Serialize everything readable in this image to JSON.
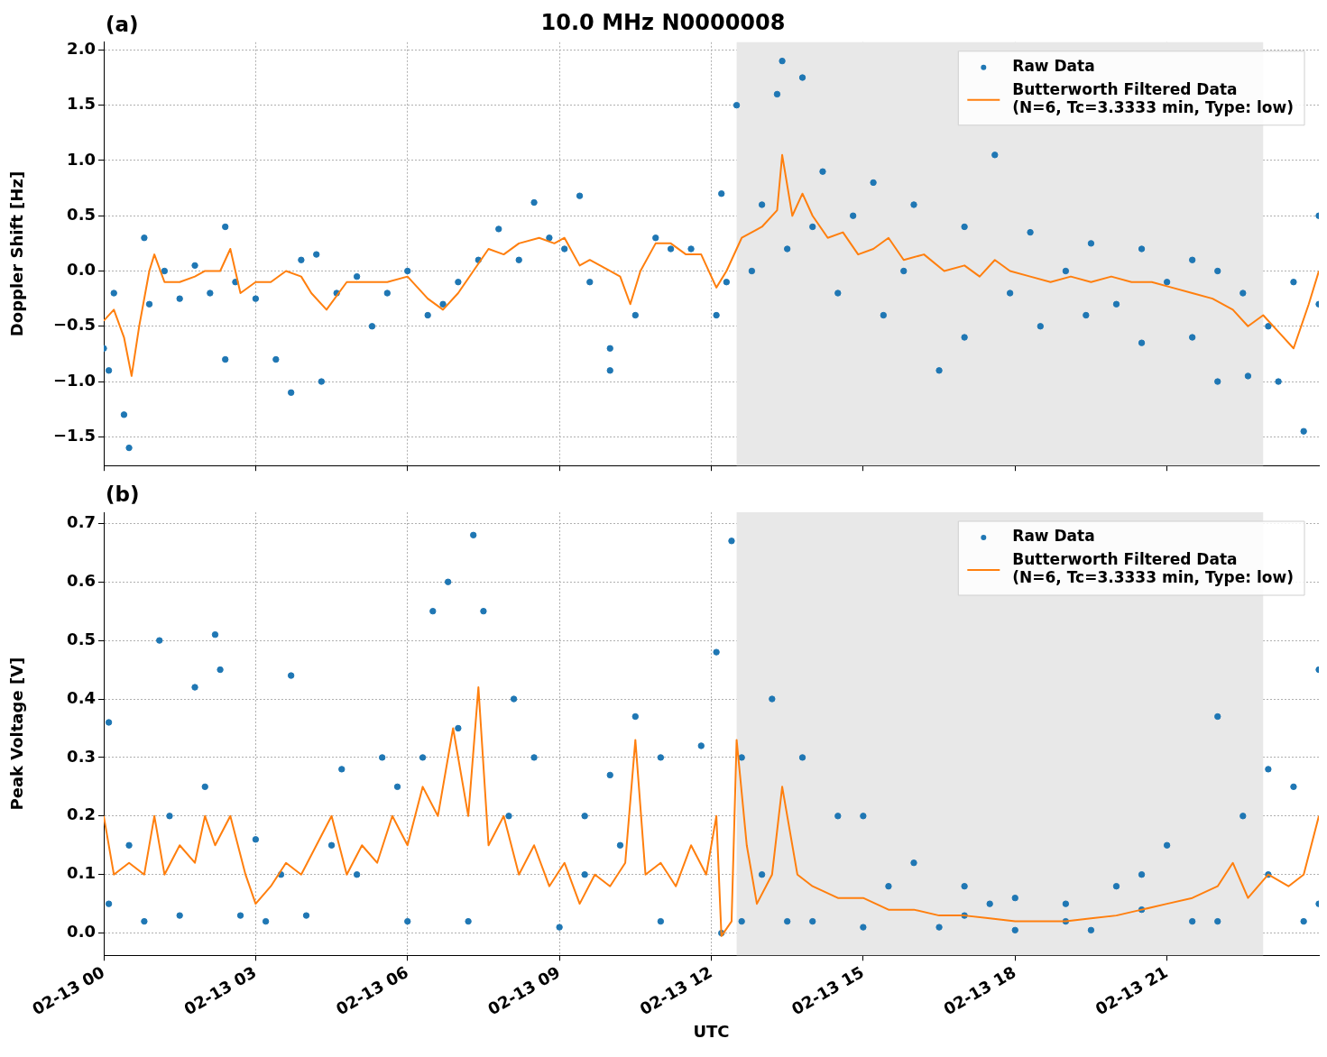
{
  "chart_data": [
    {
      "type": "scatter",
      "title": "10.0 MHz N0000008",
      "annotations": [
        "(a)"
      ],
      "ylabel": "Doppler Shift [Hz]",
      "xlim": [
        "--02-13T00:00",
        "--02-14T00:00"
      ],
      "xticks": [
        {
          "value": "--02-13T00:00",
          "label": "02-13 00"
        },
        {
          "value": "--02-13T03:00",
          "label": "02-13 03"
        },
        {
          "value": "--02-13T06:00",
          "label": "02-13 06"
        },
        {
          "value": "--02-13T09:00",
          "label": "02-13 09"
        },
        {
          "value": "--02-13T12:00",
          "label": "02-13 12"
        },
        {
          "value": "--02-13T15:00",
          "label": "02-13 15"
        },
        {
          "value": "--02-13T18:00",
          "label": "02-13 18"
        },
        {
          "value": "--02-13T21:00",
          "label": "02-13 21"
        }
      ],
      "ylim": [
        -1.76,
        2.07
      ],
      "yticks": [
        {
          "value": -1.5,
          "label": "−1.5"
        },
        {
          "value": -1,
          "label": "−1.0"
        },
        {
          "value": -0.5,
          "label": "−0.5"
        },
        {
          "value": 0,
          "label": "0.0"
        },
        {
          "value": 0.5,
          "label": "0.5"
        },
        {
          "value": 1,
          "label": "1.0"
        },
        {
          "value": 1.5,
          "label": "1.5"
        },
        {
          "value": 2,
          "label": "2.0"
        }
      ],
      "tick_labels": "y",
      "grid": true,
      "legend": "top right",
      "bands": [
        {
          "axis": "x",
          "from": "--02-13T12:30",
          "to": "--02-13T22:54",
          "color": "#e8e8e8"
        }
      ],
      "series": [
        {
          "name": "Raw Data",
          "type": "scatter",
          "marker": "circle",
          "color": "#1f77b4",
          "x": [
            "--02-13T00:00",
            "--02-13T00:06",
            "--02-13T00:12",
            "--02-13T00:24",
            "--02-13T00:30",
            "--02-13T00:48",
            "--02-13T00:54",
            "--02-13T01:12",
            "--02-13T01:30",
            "--02-13T01:48",
            "--02-13T02:06",
            "--02-13T02:24",
            "--02-13T02:24",
            "--02-13T02:36",
            "--02-13T03:00",
            "--02-13T03:24",
            "--02-13T03:42",
            "--02-13T03:54",
            "--02-13T04:12",
            "--02-13T04:18",
            "--02-13T04:36",
            "--02-13T05:00",
            "--02-13T05:18",
            "--02-13T05:36",
            "--02-13T06:00",
            "--02-13T06:24",
            "--02-13T06:42",
            "--02-13T07:00",
            "--02-13T07:24",
            "--02-13T07:48",
            "--02-13T08:12",
            "--02-13T08:30",
            "--02-13T08:48",
            "--02-13T09:06",
            "--02-13T09:24",
            "--02-13T09:36",
            "--02-13T10:00",
            "--02-13T10:00",
            "--02-13T10:30",
            "--02-13T10:54",
            "--02-13T11:12",
            "--02-13T11:36",
            "--02-13T12:06",
            "--02-13T12:12",
            "--02-13T12:18",
            "--02-13T12:30",
            "--02-13T12:48",
            "--02-13T13:00",
            "--02-13T13:18",
            "--02-13T13:24",
            "--02-13T13:30",
            "--02-13T13:48",
            "--02-13T14:00",
            "--02-13T14:12",
            "--02-13T14:30",
            "--02-13T14:48",
            "--02-13T15:12",
            "--02-13T15:24",
            "--02-13T15:48",
            "--02-13T16:00",
            "--02-13T16:30",
            "--02-13T17:00",
            "--02-13T17:00",
            "--02-13T17:36",
            "--02-13T17:54",
            "--02-13T18:18",
            "--02-13T18:30",
            "--02-13T19:00",
            "--02-13T19:24",
            "--02-13T19:30",
            "--02-13T20:00",
            "--02-13T20:30",
            "--02-13T20:30",
            "--02-13T21:00",
            "--02-13T21:30",
            "--02-13T21:30",
            "--02-13T22:00",
            "--02-13T22:00",
            "--02-13T22:30",
            "--02-13T22:36",
            "--02-13T23:00",
            "--02-13T23:12",
            "--02-13T23:30",
            "--02-13T23:42",
            "--02-14T00:00",
            "--02-14T00:00"
          ],
          "values": [
            -0.7,
            -0.9,
            -0.2,
            -1.3,
            -1.6,
            0.3,
            -0.3,
            0.0,
            -0.25,
            0.05,
            -0.2,
            0.4,
            -0.8,
            -0.1,
            -0.25,
            -0.8,
            -1.1,
            0.1,
            0.15,
            -1.0,
            -0.2,
            -0.05,
            -0.5,
            -0.2,
            0.0,
            -0.4,
            -0.3,
            -0.1,
            0.1,
            0.38,
            0.1,
            0.62,
            0.3,
            0.2,
            0.68,
            -0.1,
            -0.7,
            -0.9,
            -0.4,
            0.3,
            0.2,
            0.2,
            -0.4,
            0.7,
            -0.1,
            1.5,
            0.0,
            0.6,
            1.6,
            1.9,
            0.2,
            1.75,
            0.4,
            0.9,
            -0.2,
            0.5,
            0.8,
            -0.4,
            0.0,
            0.6,
            -0.9,
            0.4,
            -0.6,
            1.05,
            -0.2,
            0.35,
            -0.5,
            0.0,
            -0.4,
            0.25,
            -0.3,
            0.2,
            -0.65,
            -0.1,
            0.1,
            -0.6,
            0.0,
            -1.0,
            -0.2,
            -0.95,
            -0.5,
            -1.0,
            -0.1,
            -1.45,
            0.5,
            -0.3
          ]
        },
        {
          "name": "Butterworth Filtered Data\n(N=6, Tc=3.3333 min, Type: low)",
          "type": "line",
          "color": "#ff7f0e",
          "line_style": "solid",
          "x": [
            "--02-13T00:00",
            "--02-13T00:12",
            "--02-13T00:24",
            "--02-13T00:33",
            "--02-13T00:42",
            "--02-13T00:54",
            "--02-13T01:00",
            "--02-13T01:12",
            "--02-13T01:30",
            "--02-13T01:48",
            "--02-13T02:00",
            "--02-13T02:18",
            "--02-13T02:30",
            "--02-13T02:42",
            "--02-13T03:00",
            "--02-13T03:18",
            "--02-13T03:36",
            "--02-13T03:54",
            "--02-13T04:06",
            "--02-13T04:24",
            "--02-13T04:48",
            "--02-13T05:12",
            "--02-13T05:36",
            "--02-13T06:00",
            "--02-13T06:24",
            "--02-13T06:42",
            "--02-13T07:00",
            "--02-13T07:18",
            "--02-13T07:36",
            "--02-13T07:54",
            "--02-13T08:12",
            "--02-13T08:36",
            "--02-13T08:54",
            "--02-13T09:06",
            "--02-13T09:24",
            "--02-13T09:36",
            "--02-13T10:00",
            "--02-13T10:12",
            "--02-13T10:24",
            "--02-13T10:36",
            "--02-13T10:54",
            "--02-13T11:12",
            "--02-13T11:30",
            "--02-13T11:48",
            "--02-13T12:06",
            "--02-13T12:18",
            "--02-13T12:36",
            "--02-13T13:00",
            "--02-13T13:18",
            "--02-13T13:24",
            "--02-13T13:36",
            "--02-13T13:48",
            "--02-13T14:00",
            "--02-13T14:18",
            "--02-13T14:36",
            "--02-13T14:54",
            "--02-13T15:12",
            "--02-13T15:30",
            "--02-13T15:48",
            "--02-13T16:12",
            "--02-13T16:36",
            "--02-13T17:00",
            "--02-13T17:18",
            "--02-13T17:36",
            "--02-13T17:54",
            "--02-13T18:18",
            "--02-13T18:42",
            "--02-13T19:06",
            "--02-13T19:30",
            "--02-13T19:54",
            "--02-13T20:18",
            "--02-13T20:42",
            "--02-13T21:06",
            "--02-13T21:30",
            "--02-13T21:54",
            "--02-13T22:18",
            "--02-13T22:36",
            "--02-13T22:54",
            "--02-13T23:12",
            "--02-13T23:30",
            "--02-13T23:48",
            "--02-14T00:00"
          ],
          "values": [
            -0.45,
            -0.35,
            -0.6,
            -0.95,
            -0.5,
            0.0,
            0.15,
            -0.1,
            -0.1,
            -0.05,
            0.0,
            0.0,
            0.2,
            -0.2,
            -0.1,
            -0.1,
            0.0,
            -0.05,
            -0.2,
            -0.35,
            -0.1,
            -0.1,
            -0.1,
            -0.05,
            -0.25,
            -0.35,
            -0.2,
            0.0,
            0.2,
            0.15,
            0.25,
            0.3,
            0.25,
            0.3,
            0.05,
            0.1,
            0.0,
            -0.05,
            -0.3,
            0.0,
            0.25,
            0.25,
            0.15,
            0.15,
            -0.15,
            0.0,
            0.3,
            0.4,
            0.55,
            1.05,
            0.5,
            0.7,
            0.5,
            0.3,
            0.35,
            0.15,
            0.2,
            0.3,
            0.1,
            0.15,
            0.0,
            0.05,
            -0.05,
            0.1,
            0.0,
            -0.05,
            -0.1,
            -0.05,
            -0.1,
            -0.05,
            -0.1,
            -0.1,
            -0.15,
            -0.2,
            -0.25,
            -0.35,
            -0.5,
            -0.4,
            -0.55,
            -0.7,
            -0.3,
            0.0
          ]
        }
      ]
    },
    {
      "type": "scatter",
      "annotations": [
        "(b)"
      ],
      "xlabel": "UTC",
      "ylabel": "Peak Voltage [V]",
      "xlim": [
        "--02-13T00:00",
        "--02-14T00:00"
      ],
      "xticks": [
        {
          "value": "--02-13T00:00",
          "label": "02-13 00"
        },
        {
          "value": "--02-13T03:00",
          "label": "02-13 03"
        },
        {
          "value": "--02-13T06:00",
          "label": "02-13 06"
        },
        {
          "value": "--02-13T09:00",
          "label": "02-13 09"
        },
        {
          "value": "--02-13T12:00",
          "label": "02-13 12"
        },
        {
          "value": "--02-13T15:00",
          "label": "02-13 15"
        },
        {
          "value": "--02-13T18:00",
          "label": "02-13 18"
        },
        {
          "value": "--02-13T21:00",
          "label": "02-13 21"
        }
      ],
      "ylim": [
        -0.038,
        0.719
      ],
      "yticks": [
        {
          "value": 0,
          "label": "0.0"
        },
        {
          "value": 0.1,
          "label": "0.1"
        },
        {
          "value": 0.2,
          "label": "0.2"
        },
        {
          "value": 0.3,
          "label": "0.3"
        },
        {
          "value": 0.4,
          "label": "0.4"
        },
        {
          "value": 0.5,
          "label": "0.5"
        },
        {
          "value": 0.6,
          "label": "0.6"
        },
        {
          "value": 0.7,
          "label": "0.7"
        }
      ],
      "grid": true,
      "legend": "top right",
      "bands": [
        {
          "axis": "x",
          "from": "--02-13T12:30",
          "to": "--02-13T22:54",
          "color": "#e8e8e8"
        }
      ],
      "series": [
        {
          "name": "Raw Data",
          "type": "scatter",
          "marker": "circle",
          "color": "#1f77b4",
          "x": [
            "--02-13T00:06",
            "--02-13T00:06",
            "--02-13T00:30",
            "--02-13T00:48",
            "--02-13T01:06",
            "--02-13T01:18",
            "--02-13T01:30",
            "--02-13T01:48",
            "--02-13T02:00",
            "--02-13T02:12",
            "--02-13T02:18",
            "--02-13T02:42",
            "--02-13T03:00",
            "--02-13T03:12",
            "--02-13T03:30",
            "--02-13T03:42",
            "--02-13T04:00",
            "--02-13T04:30",
            "--02-13T04:42",
            "--02-13T05:00",
            "--02-13T05:30",
            "--02-13T05:48",
            "--02-13T06:00",
            "--02-13T06:18",
            "--02-13T06:30",
            "--02-13T06:48",
            "--02-13T07:00",
            "--02-13T07:12",
            "--02-13T07:18",
            "--02-13T07:30",
            "--02-13T08:00",
            "--02-13T08:06",
            "--02-13T08:30",
            "--02-13T09:00",
            "--02-13T09:30",
            "--02-13T09:30",
            "--02-13T10:00",
            "--02-13T10:12",
            "--02-13T10:30",
            "--02-13T11:00",
            "--02-13T11:00",
            "--02-13T11:48",
            "--02-13T12:06",
            "--02-13T12:12",
            "--02-13T12:24",
            "--02-13T12:36",
            "--02-13T12:36",
            "--02-13T13:00",
            "--02-13T13:12",
            "--02-13T13:30",
            "--02-13T13:48",
            "--02-13T14:00",
            "--02-13T14:30",
            "--02-13T15:00",
            "--02-13T15:00",
            "--02-13T15:30",
            "--02-13T16:00",
            "--02-13T16:30",
            "--02-13T17:00",
            "--02-13T17:00",
            "--02-13T17:30",
            "--02-13T18:00",
            "--02-13T18:00",
            "--02-13T19:00",
            "--02-13T19:00",
            "--02-13T19:30",
            "--02-13T20:00",
            "--02-13T20:30",
            "--02-13T20:30",
            "--02-13T21:00",
            "--02-13T21:30",
            "--02-13T22:00",
            "--02-13T22:00",
            "--02-13T22:30",
            "--02-13T23:00",
            "--02-13T23:00",
            "--02-13T23:30",
            "--02-13T23:42",
            "--02-14T00:00",
            "--02-14T00:00"
          ],
          "values": [
            0.36,
            0.05,
            0.15,
            0.02,
            0.5,
            0.2,
            0.03,
            0.42,
            0.25,
            0.51,
            0.45,
            0.03,
            0.16,
            0.02,
            0.1,
            0.44,
            0.03,
            0.15,
            0.28,
            0.1,
            0.3,
            0.25,
            0.02,
            0.3,
            0.55,
            0.6,
            0.35,
            0.02,
            0.68,
            0.55,
            0.2,
            0.4,
            0.3,
            0.01,
            0.2,
            0.1,
            0.27,
            0.15,
            0.37,
            0.3,
            0.02,
            0.32,
            0.48,
            0.0,
            0.67,
            0.3,
            0.02,
            0.1,
            0.4,
            0.02,
            0.3,
            0.02,
            0.2,
            0.2,
            0.01,
            0.08,
            0.12,
            0.01,
            0.08,
            0.03,
            0.05,
            0.06,
            0.005,
            0.05,
            0.02,
            0.005,
            0.08,
            0.1,
            0.04,
            0.15,
            0.02,
            0.37,
            0.02,
            0.2,
            0.28,
            0.1,
            0.25,
            0.02,
            0.45,
            0.05
          ]
        },
        {
          "name": "Butterworth Filtered Data\n(N=6, Tc=3.3333 min, Type: low)",
          "type": "line",
          "color": "#ff7f0e",
          "line_style": "solid",
          "x": [
            "--02-13T00:00",
            "--02-13T00:12",
            "--02-13T00:30",
            "--02-13T00:48",
            "--02-13T01:00",
            "--02-13T01:12",
            "--02-13T01:30",
            "--02-13T01:48",
            "--02-13T02:00",
            "--02-13T02:12",
            "--02-13T02:30",
            "--02-13T02:48",
            "--02-13T03:00",
            "--02-13T03:18",
            "--02-13T03:36",
            "--02-13T03:54",
            "--02-13T04:12",
            "--02-13T04:30",
            "--02-13T04:48",
            "--02-13T05:06",
            "--02-13T05:24",
            "--02-13T05:42",
            "--02-13T06:00",
            "--02-13T06:18",
            "--02-13T06:36",
            "--02-13T06:54",
            "--02-13T07:12",
            "--02-13T07:24",
            "--02-13T07:36",
            "--02-13T07:54",
            "--02-13T08:12",
            "--02-13T08:30",
            "--02-13T08:48",
            "--02-13T09:06",
            "--02-13T09:24",
            "--02-13T09:42",
            "--02-13T10:00",
            "--02-13T10:18",
            "--02-13T10:30",
            "--02-13T10:42",
            "--02-13T11:00",
            "--02-13T11:18",
            "--02-13T11:36",
            "--02-13T11:54",
            "--02-13T12:06",
            "--02-13T12:12",
            "--02-13T12:24",
            "--02-13T12:30",
            "--02-13T12:42",
            "--02-13T12:54",
            "--02-13T13:12",
            "--02-13T13:24",
            "--02-13T13:42",
            "--02-13T14:00",
            "--02-13T14:30",
            "--02-13T15:00",
            "--02-13T15:30",
            "--02-13T16:00",
            "--02-13T16:30",
            "--02-13T17:00",
            "--02-13T17:30",
            "--02-13T18:00",
            "--02-13T18:30",
            "--02-13T19:00",
            "--02-13T19:30",
            "--02-13T20:00",
            "--02-13T20:30",
            "--02-13T21:00",
            "--02-13T21:30",
            "--02-13T22:00",
            "--02-13T22:18",
            "--02-13T22:36",
            "--02-13T23:00",
            "--02-13T23:24",
            "--02-13T23:42",
            "--02-14T00:00"
          ],
          "values": [
            0.2,
            0.1,
            0.12,
            0.1,
            0.2,
            0.1,
            0.15,
            0.12,
            0.2,
            0.15,
            0.2,
            0.1,
            0.05,
            0.08,
            0.12,
            0.1,
            0.15,
            0.2,
            0.1,
            0.15,
            0.12,
            0.2,
            0.15,
            0.25,
            0.2,
            0.35,
            0.2,
            0.42,
            0.15,
            0.2,
            0.1,
            0.15,
            0.08,
            0.12,
            0.05,
            0.1,
            0.08,
            0.12,
            0.33,
            0.1,
            0.12,
            0.08,
            0.15,
            0.1,
            0.2,
            -0.005,
            0.02,
            0.33,
            0.15,
            0.05,
            0.1,
            0.25,
            0.1,
            0.08,
            0.06,
            0.06,
            0.04,
            0.04,
            0.03,
            0.03,
            0.025,
            0.02,
            0.02,
            0.02,
            0.025,
            0.03,
            0.04,
            0.05,
            0.06,
            0.08,
            0.12,
            0.06,
            0.1,
            0.08,
            0.1,
            0.2
          ]
        }
      ]
    }
  ]
}
